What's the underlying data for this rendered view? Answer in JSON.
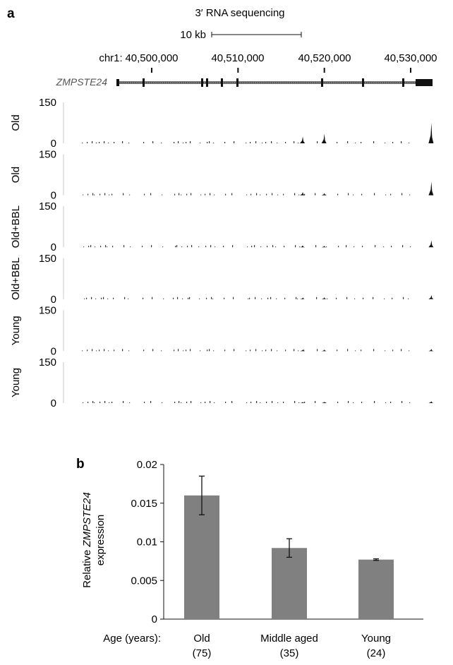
{
  "panel_a": {
    "panel_label": "a",
    "title": "3′ RNA sequencing",
    "scale_label": "10 kb",
    "chrom_prefix": "chr1:",
    "coordinate_ticks": [
      "40,500,000",
      "40,510,000",
      "40,520,000",
      "40,530,000"
    ],
    "gene_name": "ZMPSTE24",
    "track_ymax_label": "150",
    "track_ymin_label": "0",
    "tracks": [
      {
        "label": "Old"
      },
      {
        "label": "Old"
      },
      {
        "label": "Old+BBL"
      },
      {
        "label": "Old+BBL"
      },
      {
        "label": "Young"
      },
      {
        "label": "Young"
      }
    ],
    "colors": {
      "signal": "#111111",
      "gene": "#222222",
      "axis": "#bbbbbb"
    }
  },
  "chart_data": [
    {
      "type": "area",
      "title": "3′ RNA sequencing",
      "ylim": [
        0,
        150
      ],
      "x_ticks": [
        "40,500,000",
        "40,510,000",
        "40,520,000",
        "40,530,000"
      ],
      "xlim": [
        40497000,
        40534000
      ],
      "series": [
        {
          "name": "Old",
          "peaks": [
            {
              "x": 40517500,
              "y": 25
            },
            {
              "x": 40520000,
              "y": 35
            },
            {
              "x": 40532400,
              "y": 75
            }
          ]
        },
        {
          "name": "Old",
          "peaks": [
            {
              "x": 40517500,
              "y": 12
            },
            {
              "x": 40520000,
              "y": 8
            },
            {
              "x": 40532400,
              "y": 50
            }
          ]
        },
        {
          "name": "Old+BBL",
          "peaks": [
            {
              "x": 40517500,
              "y": 6
            },
            {
              "x": 40520000,
              "y": 5
            },
            {
              "x": 40532400,
              "y": 25
            }
          ]
        },
        {
          "name": "Old+BBL",
          "peaks": [
            {
              "x": 40517500,
              "y": 5
            },
            {
              "x": 40520000,
              "y": 7
            },
            {
              "x": 40532400,
              "y": 15
            }
          ]
        },
        {
          "name": "Young",
          "peaks": [
            {
              "x": 40517500,
              "y": 6
            },
            {
              "x": 40520000,
              "y": 6
            },
            {
              "x": 40532400,
              "y": 8
            }
          ]
        },
        {
          "name": "Young",
          "peaks": [
            {
              "x": 40517500,
              "y": 4
            },
            {
              "x": 40520000,
              "y": 5
            },
            {
              "x": 40532400,
              "y": 7
            }
          ]
        }
      ]
    },
    {
      "type": "bar",
      "panel_label": "b",
      "categories": [
        "Old\n(75)",
        "Middle aged\n(35)",
        "Young\n(24)"
      ],
      "category_lines": [
        [
          "Old",
          "(75)"
        ],
        [
          "Middle aged",
          "(35)"
        ],
        [
          "Young",
          "(24)"
        ]
      ],
      "values": [
        0.016,
        0.0092,
        0.0077
      ],
      "errors": [
        0.0025,
        0.0012,
        0.0001
      ],
      "ylabel_prefix": "Relative",
      "ylabel_gene": "ZMPSTE24",
      "ylabel_suffix": "expression",
      "xlabel": "Age (years):",
      "ylim": [
        0,
        0.02
      ],
      "yticks": [
        "0",
        "0.005",
        "0.01",
        "0.015",
        "0.02"
      ],
      "ytick_values": [
        0,
        0.005,
        0.01,
        0.015,
        0.02
      ],
      "bar_color": "#808080",
      "grid": false
    }
  ]
}
